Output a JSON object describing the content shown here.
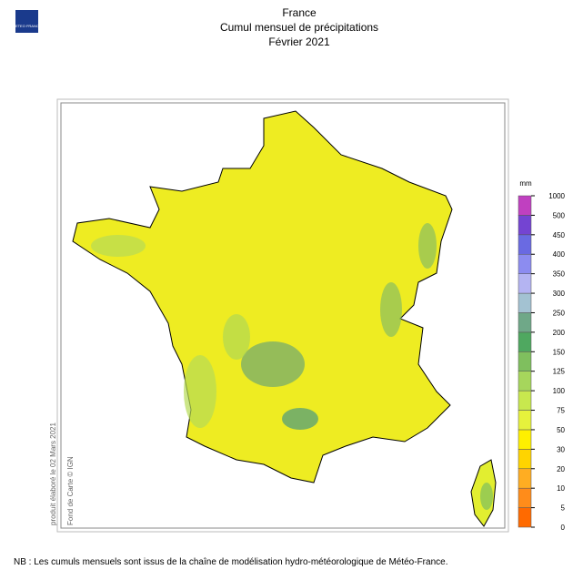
{
  "logo": "METEO FRANCE",
  "title": [
    "France",
    "Cumul mensuel de précipitations",
    "Février 2021"
  ],
  "legend": {
    "unit": "mm",
    "ticks": [
      0,
      5,
      10,
      20,
      30,
      50,
      75,
      100,
      125,
      150,
      200,
      250,
      300,
      350,
      400,
      450,
      500,
      1000
    ],
    "colors": [
      "#ff6a00",
      "#ff8c1a",
      "#ffad22",
      "#ffd400",
      "#fff000",
      "#e6f23c",
      "#c8e84e",
      "#a6d65c",
      "#7fbf5e",
      "#4fa860",
      "#6fa888",
      "#a3c2d2",
      "#b4b4f2",
      "#8c8cf0",
      "#6a6ae2",
      "#7444d2",
      "#c040c0"
    ]
  },
  "side_notes": [
    "produit élaboré le 02 Mars 2021",
    "Fond de Carte © IGN"
  ],
  "footer": "NB : Les cumuls mensuels sont issus de la chaîne de modélisation hydro-météorologique de Météo-France."
}
